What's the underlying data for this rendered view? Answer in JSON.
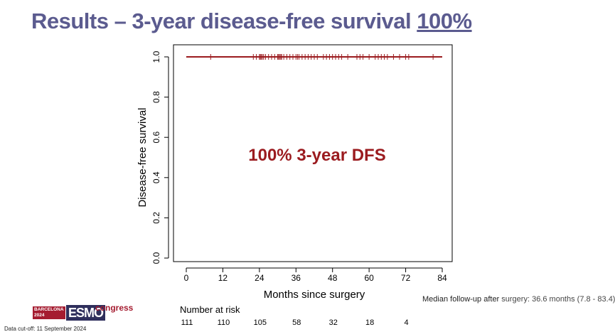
{
  "slide": {
    "title_prefix": "Results – 3-year disease-free survival ",
    "title_highlight": "100%",
    "annotation": "100% 3-year DFS",
    "number_at_risk_label": "Number at risk",
    "followup_prefix": "Median follow-up after ",
    "followup_value": "surgery: 36.6 months (7.8 - 83.4)",
    "cutoff": "Data cut-off: 11 September 2024",
    "logo": {
      "city": "BARCELONA",
      "year": "2024",
      "brand": "ESMO",
      "suffix": "congress"
    }
  },
  "chart_data": {
    "type": "line",
    "xlabel": "Months since surgery",
    "ylabel": "Disease-free survival",
    "xlim": [
      0,
      84
    ],
    "ylim": [
      0,
      1
    ],
    "xticks": [
      0,
      12,
      24,
      36,
      48,
      60,
      72,
      84
    ],
    "yticks": [
      "0.0",
      "0.2",
      "0.4",
      "0.6",
      "0.8",
      "1.0"
    ],
    "series": [
      {
        "x": [
          0,
          84
        ],
        "y": [
          1.0,
          1.0
        ],
        "color": "#9b1b1f"
      }
    ],
    "censor_times": [
      8,
      22,
      23,
      24,
      24.3,
      24.6,
      25,
      25.4,
      26,
      27,
      28,
      29,
      30,
      30.3,
      30.6,
      31,
      31.3,
      32,
      33,
      34,
      35,
      36,
      36.5,
      37,
      38,
      39,
      40,
      41,
      42,
      43,
      45,
      46,
      47,
      48,
      49,
      50,
      51,
      53,
      56,
      57,
      58,
      60,
      62,
      63,
      64,
      65,
      66,
      68,
      70,
      72,
      73,
      81
    ],
    "number_at_risk": [
      111,
      110,
      105,
      58,
      32,
      18,
      4
    ],
    "number_at_risk_times": [
      0,
      12,
      24,
      36,
      48,
      60,
      72
    ]
  }
}
